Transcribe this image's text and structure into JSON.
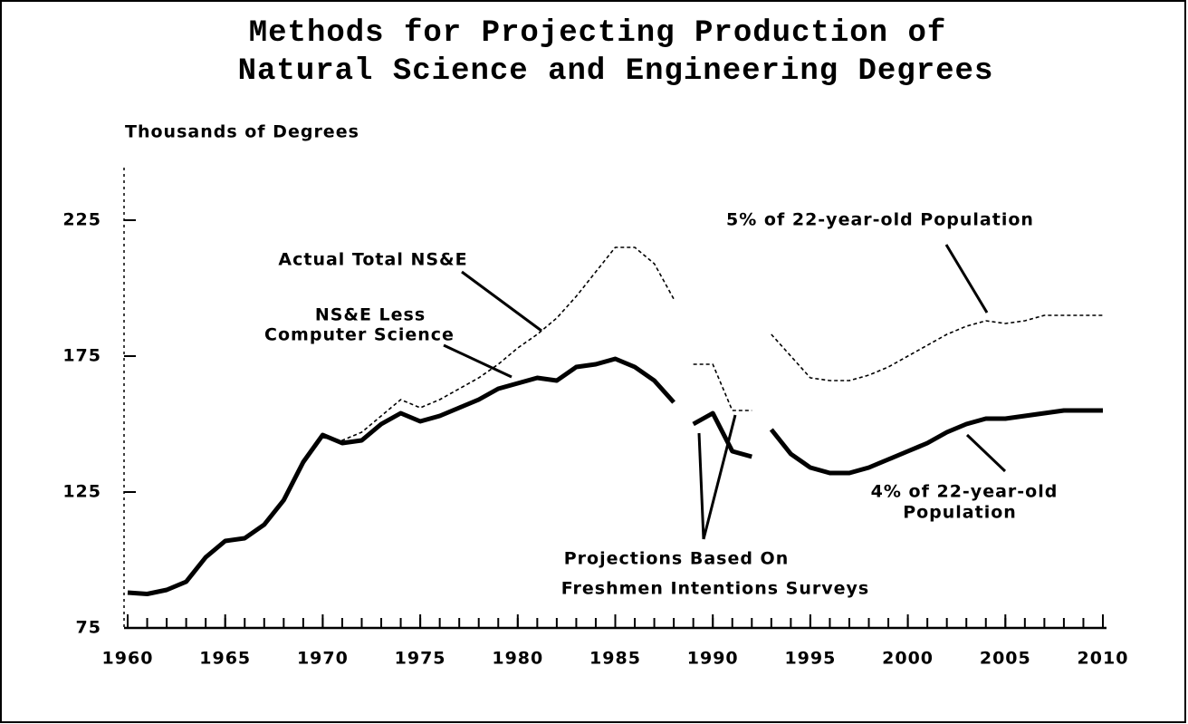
{
  "chart_data": {
    "type": "line",
    "title": [
      "Methods for Projecting Production of",
      "Natural Science and Engineering Degrees"
    ],
    "y_label": "Thousands of Degrees",
    "xlim": [
      1960,
      2010
    ],
    "ylim": [
      75,
      244
    ],
    "xticks": [
      1960,
      1965,
      1970,
      1975,
      1980,
      1985,
      1990,
      1995,
      2000,
      2005,
      2010
    ],
    "xticks_minor": [
      1960,
      1961,
      1962,
      1963,
      1964,
      1965,
      1966,
      1967,
      1968,
      1969,
      1970,
      1971,
      1972,
      1973,
      1974,
      1975,
      1976,
      1977,
      1978,
      1979,
      1980,
      1981,
      1982,
      1983,
      1984,
      1985,
      1986,
      1987,
      1988,
      1989,
      1990,
      1991,
      1992,
      1993,
      1994,
      1995,
      1996,
      1997,
      1998,
      1999,
      2000,
      2001,
      2002,
      2003,
      2004,
      2005,
      2006,
      2007,
      2008,
      2009,
      2010
    ],
    "yticks": [
      75,
      125,
      175,
      225
    ],
    "series": [
      {
        "style": "solid",
        "color": "#000000",
        "x": [
          1960,
          1961,
          1962,
          1963,
          1964,
          1965,
          1966,
          1967,
          1968,
          1969,
          1970,
          1971,
          1972,
          1973,
          1974,
          1975,
          1976,
          1977,
          1978,
          1979,
          1980,
          1981,
          1982,
          1983,
          1984,
          1985,
          1986,
          1987,
          1988
        ],
        "values": [
          88,
          87.5,
          89,
          92,
          101,
          107,
          108,
          113,
          122,
          136,
          146,
          143,
          144,
          150,
          154,
          151,
          153,
          156,
          159,
          163,
          165,
          167,
          166,
          171,
          172,
          174,
          171,
          166,
          158
        ]
      },
      {
        "style": "dashed",
        "color": "#000000",
        "x": [
          1970,
          1971,
          1972,
          1973,
          1974,
          1975,
          1976,
          1977,
          1978,
          1979,
          1980,
          1981,
          1982,
          1983,
          1984,
          1985,
          1986,
          1987,
          1988
        ],
        "values": [
          145,
          144,
          147,
          153,
          159,
          156,
          159,
          163,
          167,
          172,
          178,
          183,
          189,
          197,
          206,
          215,
          215,
          209,
          196
        ]
      },
      {
        "style": "dashed",
        "color": "#000000",
        "x": [
          1989,
          1990,
          1991,
          1992
        ],
        "values": [
          172,
          172,
          155,
          155
        ]
      },
      {
        "style": "solid",
        "color": "#000000",
        "x": [
          1989,
          1990,
          1991,
          1992
        ],
        "values": [
          150,
          154,
          140,
          138
        ]
      },
      {
        "style": "dashed",
        "color": "#000000",
        "x": [
          1993,
          1994,
          1995,
          1996,
          1997,
          1998,
          1999,
          2000,
          2001,
          2002,
          2003,
          2004,
          2005,
          2006,
          2007,
          2008,
          2009,
          2010
        ],
        "values": [
          183,
          175,
          167,
          166,
          166,
          168,
          171,
          175,
          179,
          183,
          186,
          188,
          187,
          188,
          190,
          190,
          190,
          190
        ]
      },
      {
        "style": "solid",
        "color": "#000000",
        "x": [
          1993,
          1994,
          1995,
          1996,
          1997,
          1998,
          1999,
          2000,
          2001,
          2002,
          2003,
          2004,
          2005,
          2006,
          2007,
          2008,
          2009,
          2010
        ],
        "values": [
          148,
          139,
          134,
          132,
          132,
          134,
          137,
          140,
          143,
          147,
          150,
          152,
          152,
          153,
          154,
          155,
          155,
          155
        ]
      }
    ],
    "annotations": [
      {
        "lines": [
          "Actual Total NS&E"
        ]
      },
      {
        "lines": [
          "NS&E Less",
          "Computer Science"
        ]
      },
      {
        "lines": [
          "5% of 22-year-old Population"
        ]
      },
      {
        "lines": [
          "4% of 22-year-old",
          "Population"
        ]
      },
      {
        "lines": [
          "Projections Based On",
          "Freshmen Intentions Surveys"
        ]
      }
    ]
  }
}
